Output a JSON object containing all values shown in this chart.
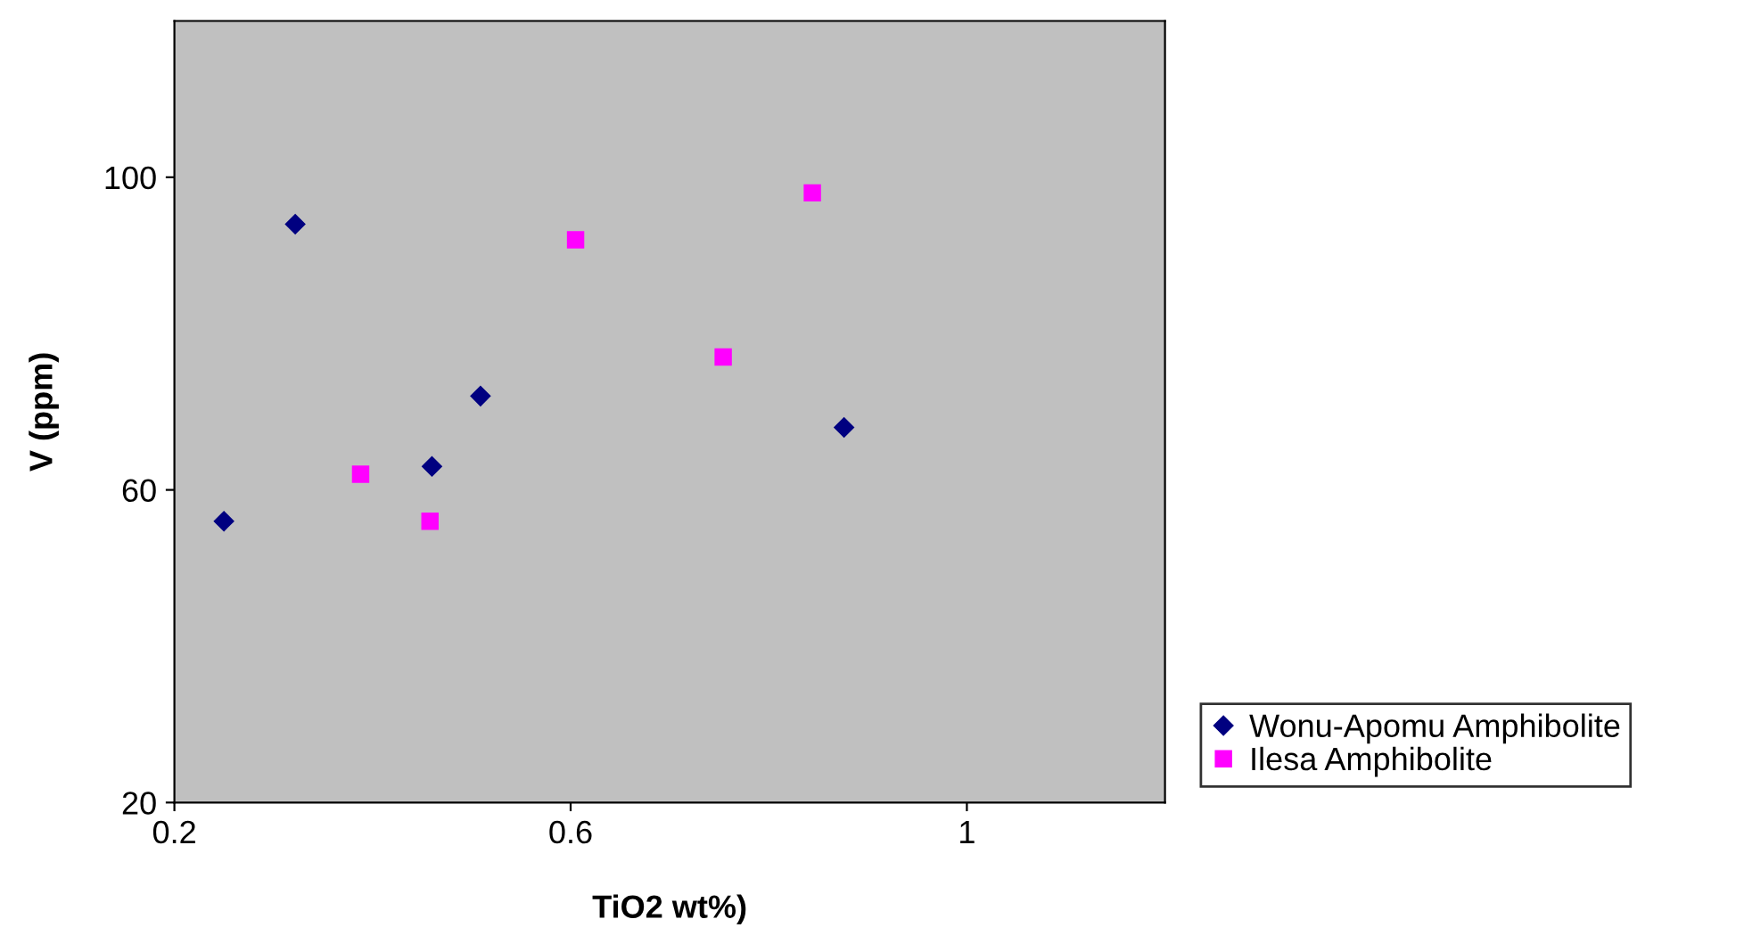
{
  "chart_data": {
    "type": "scatter",
    "xlabel": "TiO2 wt%)",
    "ylabel": "V (ppm)",
    "xlim": [
      0.2,
      1.2
    ],
    "xticks": [
      0.2,
      0.6,
      1
    ],
    "ylim": [
      20,
      120
    ],
    "yticks": [
      20,
      60,
      100
    ],
    "grid": false,
    "legend": "bottom right",
    "series": [
      {
        "name": "Wonu-Apomu Amphibolite",
        "color": "#000080",
        "marker": "diamond",
        "x": [
          0.25,
          0.322,
          0.46,
          0.509,
          0.876
        ],
        "values": [
          56,
          94,
          63,
          72,
          68
        ]
      },
      {
        "name": "Ilesa Amphibolite",
        "color": "#ff00ff",
        "marker": "square",
        "x": [
          0.388,
          0.458,
          0.605,
          0.754,
          0.844
        ],
        "values": [
          62,
          56,
          92,
          77,
          98
        ]
      }
    ]
  }
}
